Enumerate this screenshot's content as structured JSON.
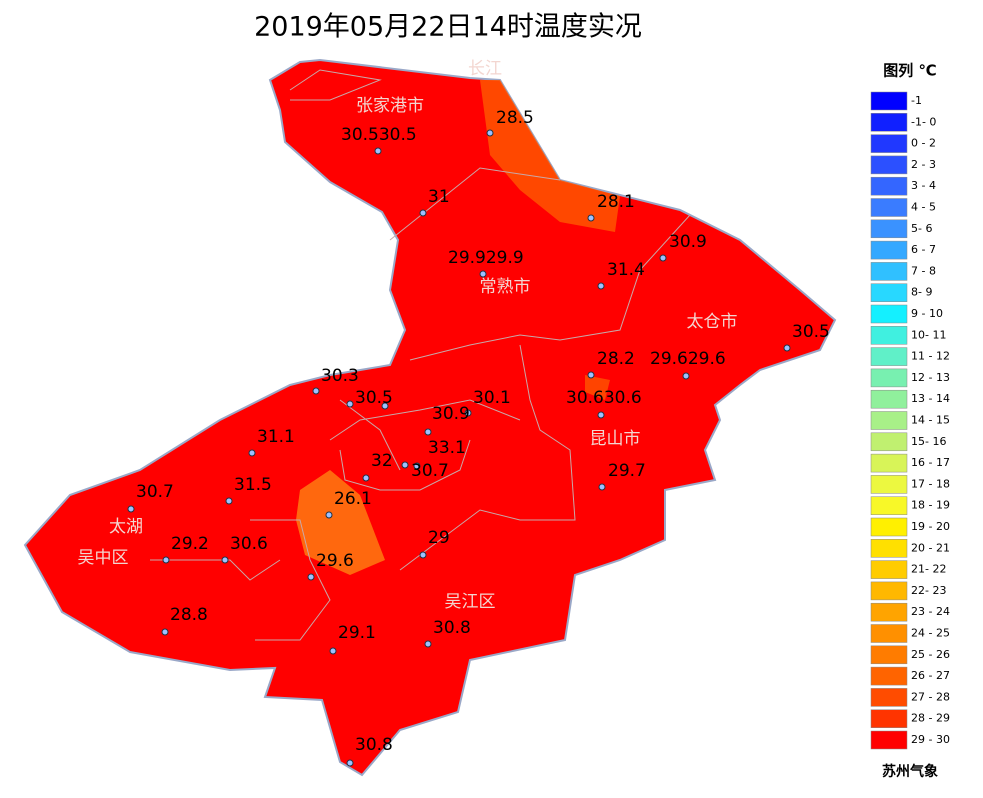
{
  "title": "2019年05月22日14时温度实况",
  "legend": {
    "title": "图列 ℃",
    "items": [
      {
        "label": "-1",
        "color": "#0000ff"
      },
      {
        "label": "-1- 0",
        "color": "#1020ff"
      },
      {
        "label": "0 - 2",
        "color": "#2038ff"
      },
      {
        "label": "2 - 3",
        "color": "#2c50ff"
      },
      {
        "label": "3 - 4",
        "color": "#3466ff"
      },
      {
        "label": "4 - 5",
        "color": "#3a7cff"
      },
      {
        "label": "5- 6",
        "color": "#3a92ff"
      },
      {
        "label": "6 - 7",
        "color": "#34a8ff"
      },
      {
        "label": "7 - 8",
        "color": "#30c0ff"
      },
      {
        "label": "8- 9",
        "color": "#28d8ff"
      },
      {
        "label": "9 - 10",
        "color": "#14f0ff"
      },
      {
        "label": "10- 11",
        "color": "#40f0e0"
      },
      {
        "label": "11 - 12",
        "color": "#60f0c8"
      },
      {
        "label": "12 - 13",
        "color": "#78f0b0"
      },
      {
        "label": "13 - 14",
        "color": "#90f09c"
      },
      {
        "label": "14 - 15",
        "color": "#a8f088"
      },
      {
        "label": "15- 16",
        "color": "#c0f070"
      },
      {
        "label": "16 - 17",
        "color": "#d8f458"
      },
      {
        "label": "17 - 18",
        "color": "#ecf840"
      },
      {
        "label": "18 - 19",
        "color": "#f8f828"
      },
      {
        "label": "19 - 20",
        "color": "#fff000"
      },
      {
        "label": "20 - 21",
        "color": "#ffe000"
      },
      {
        "label": "21- 22",
        "color": "#ffcc00"
      },
      {
        "label": "22- 23",
        "color": "#ffb800"
      },
      {
        "label": "23 - 24",
        "color": "#ffa400"
      },
      {
        "label": "24 - 25",
        "color": "#ff9000"
      },
      {
        "label": "25 - 26",
        "color": "#ff7c00"
      },
      {
        "label": "26 - 27",
        "color": "#ff6400"
      },
      {
        "label": "27 - 28",
        "color": "#ff4c00"
      },
      {
        "label": "28 - 29",
        "color": "#ff3400"
      },
      {
        "label": "29 - 30",
        "color": "#ff0000"
      }
    ]
  },
  "places": [
    "长江",
    "张家港市",
    "常熟市",
    "太仓市",
    "昆山市",
    "吴江区",
    "吴中区",
    "太湖"
  ],
  "stations": [
    "28.5",
    "30.530.5",
    "31",
    "28.1",
    "30.9",
    "29.929.9",
    "31.4",
    "30.5",
    "28.2",
    "29.629.6",
    "30.3",
    "30.5",
    "30.1",
    "30.9",
    "30.630.6",
    "31.1",
    "33.1",
    "32",
    "30.7",
    "30.7",
    "31.5",
    "29.7",
    "26.1",
    "29",
    "29.2",
    "30.6",
    "29.6",
    "28.8",
    "29.1",
    "30.8",
    "30.8"
  ],
  "footer": "苏州气象"
}
